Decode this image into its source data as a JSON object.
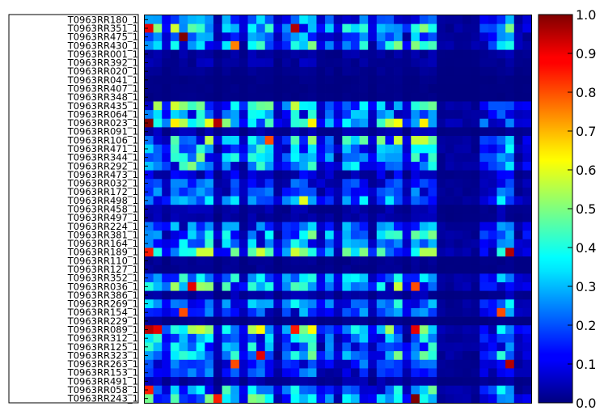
{
  "chart_data": {
    "type": "heatmap",
    "title": "",
    "xlabel": "",
    "ylabel": "",
    "colormap": "jet",
    "clim": [
      0.0,
      1.0
    ],
    "colorbar_ticks": [
      "0.0",
      "0.1",
      "0.2",
      "0.3",
      "0.4",
      "0.5",
      "0.6",
      "0.7",
      "0.8",
      "0.9",
      "1.0"
    ],
    "y_tick_labels": [
      "T0963RR180_1",
      "T0963RR351_1",
      "T0963RR475_1",
      "T0963RR430_1",
      "T0963RR001_1",
      "T0963RR392_1",
      "T0963RR020_1",
      "T0963RR041_1",
      "T0963RR407_1",
      "T0963RR348_1",
      "T0963RR435_1",
      "T0963RR064_1",
      "T0963RR023_1",
      "T0963RR091_1",
      "T0963RR106_1",
      "T0963RR471_1",
      "T0963RR344_1",
      "T0963RR292_1",
      "T0963RR473_1",
      "T0963RR032_1",
      "T0963RR172_1",
      "T0963RR498_1",
      "T0963RR458_1",
      "T0963RR497_1",
      "T0963RR224_1",
      "T0963RR381_1",
      "T0963RR164_1",
      "T0963RR189_1",
      "T0963RR110_1",
      "T0963RR127_1",
      "T0963RR352_1",
      "T0963RR036_1",
      "T0963RR386_1",
      "T0963RR269_1",
      "T0963RR154_1",
      "T0963RR229_1",
      "T0963RR089_1",
      "T0963RR312_1",
      "T0963RR125_1",
      "T0963RR323_1",
      "T0963RR263_1",
      "T0963RR153_1",
      "T0963RR491_1",
      "T0963RR058_1",
      "T0963RR243_1"
    ],
    "n_columns": 45,
    "row_base_level": [
      0.25,
      0.4,
      0.25,
      0.35,
      0.05,
      0.05,
      0.02,
      0.01,
      0.01,
      0.01,
      0.4,
      0.3,
      0.45,
      0.05,
      0.4,
      0.3,
      0.35,
      0.35,
      0.1,
      0.2,
      0.2,
      0.3,
      0.05,
      0.05,
      0.25,
      0.35,
      0.3,
      0.4,
      0.02,
      0.02,
      0.35,
      0.4,
      0.05,
      0.3,
      0.25,
      0.02,
      0.45,
      0.3,
      0.3,
      0.35,
      0.2,
      0.2,
      0.05,
      0.35,
      0.35
    ],
    "column_weight": [
      1.0,
      1.0,
      0.4,
      1.0,
      0.9,
      1.0,
      1.0,
      1.0,
      0.2,
      0.9,
      0.9,
      0.3,
      1.0,
      1.0,
      0.9,
      0.2,
      0.6,
      1.0,
      1.0,
      1.0,
      0.3,
      0.7,
      0.2,
      0.9,
      0.8,
      0.9,
      0.3,
      0.9,
      0.9,
      1.0,
      0.3,
      1.0,
      1.0,
      1.0,
      0.1,
      0.1,
      0.1,
      0.1,
      0.1,
      0.4,
      0.4,
      0.9,
      0.9,
      0.2,
      0.3
    ],
    "highlights": [
      {
        "row": 1,
        "col": 0,
        "value": 0.9
      },
      {
        "row": 1,
        "col": 17,
        "value": 0.95
      },
      {
        "row": 2,
        "col": 4,
        "value": 1.0
      },
      {
        "row": 3,
        "col": 10,
        "value": 0.75
      },
      {
        "row": 12,
        "col": 0,
        "value": 1.0
      },
      {
        "row": 12,
        "col": 8,
        "value": 0.95
      },
      {
        "row": 14,
        "col": 14,
        "value": 0.8
      },
      {
        "row": 21,
        "col": 18,
        "value": 0.6
      },
      {
        "row": 27,
        "col": 0,
        "value": 0.85
      },
      {
        "row": 27,
        "col": 42,
        "value": 0.95
      },
      {
        "row": 31,
        "col": 5,
        "value": 0.9
      },
      {
        "row": 31,
        "col": 31,
        "value": 0.8
      },
      {
        "row": 34,
        "col": 4,
        "value": 0.8
      },
      {
        "row": 34,
        "col": 41,
        "value": 0.8
      },
      {
        "row": 36,
        "col": 0,
        "value": 0.95
      },
      {
        "row": 36,
        "col": 1,
        "value": 0.9
      },
      {
        "row": 36,
        "col": 17,
        "value": 0.85
      },
      {
        "row": 36,
        "col": 31,
        "value": 0.9
      },
      {
        "row": 39,
        "col": 13,
        "value": 0.9
      },
      {
        "row": 40,
        "col": 10,
        "value": 0.8
      },
      {
        "row": 40,
        "col": 42,
        "value": 0.95
      },
      {
        "row": 43,
        "col": 0,
        "value": 0.85
      },
      {
        "row": 44,
        "col": 31,
        "value": 1.0
      },
      {
        "row": 44,
        "col": 8,
        "value": 0.85
      }
    ]
  }
}
